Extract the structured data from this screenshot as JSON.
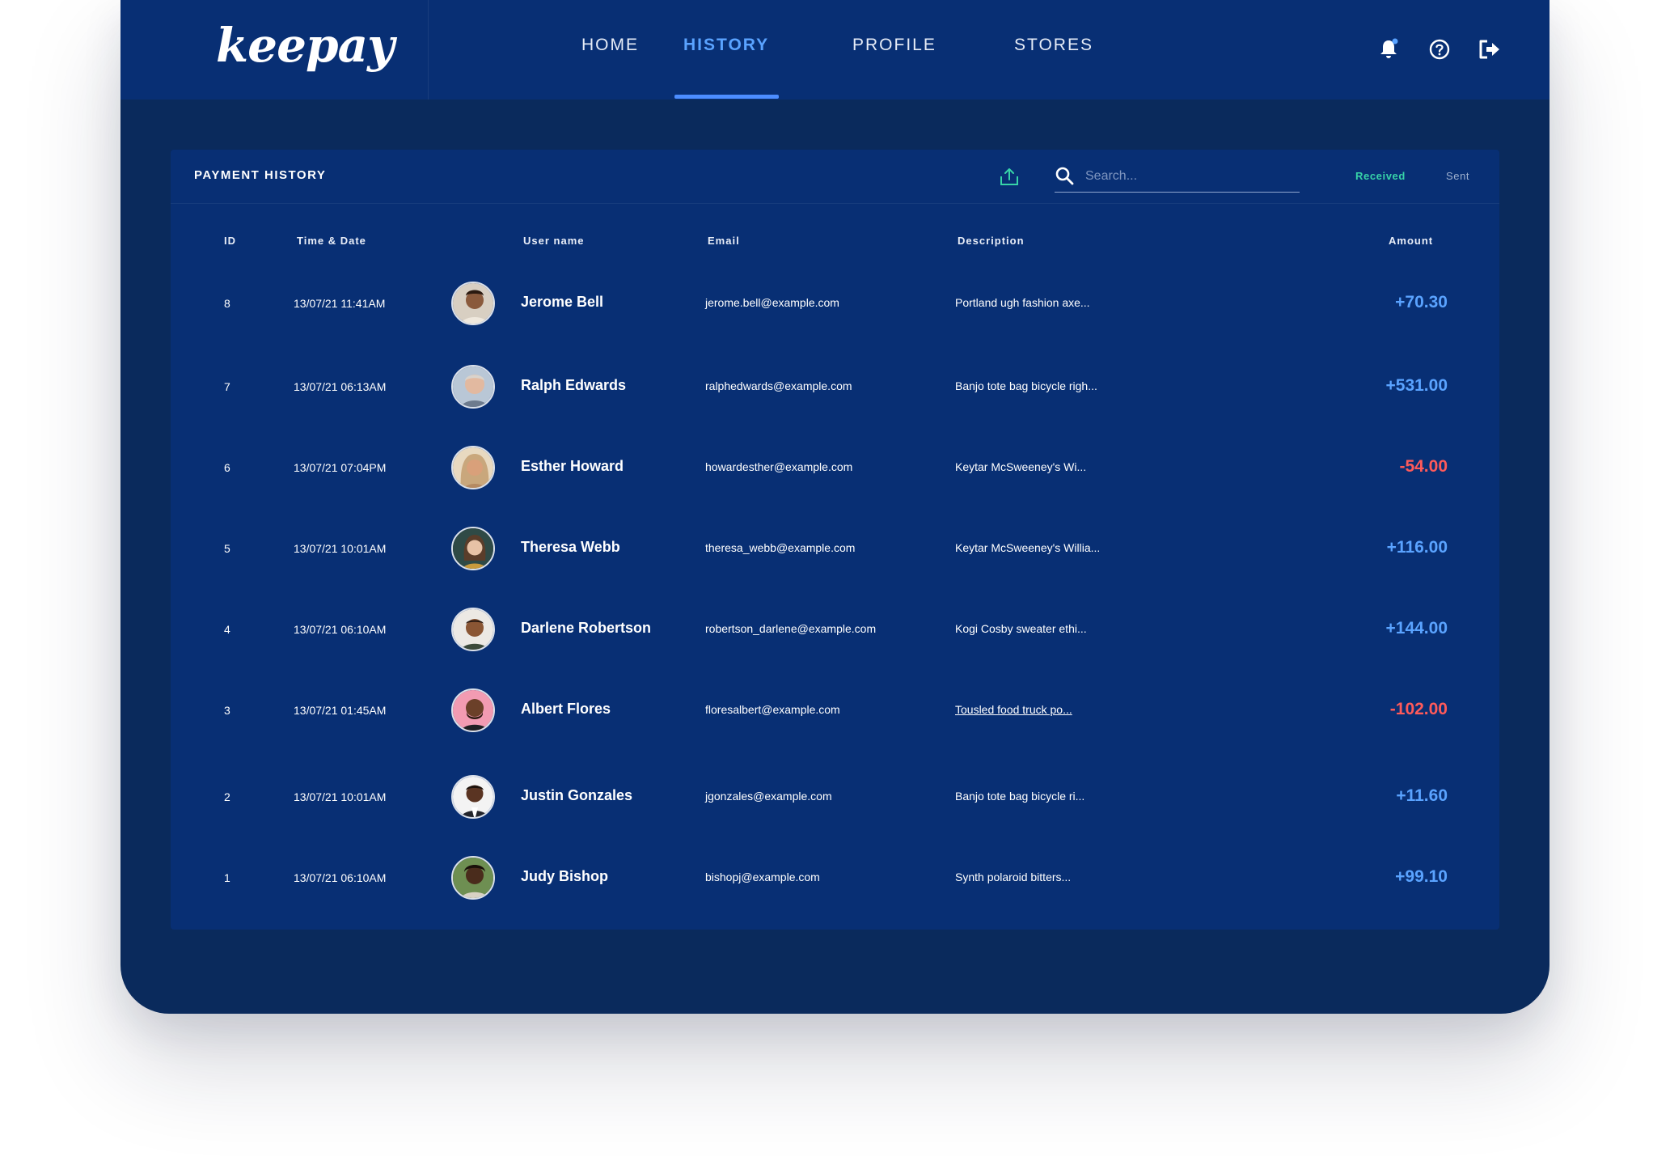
{
  "app": {
    "logo": "keepay"
  },
  "nav": {
    "items": [
      {
        "label": "HOME",
        "active": false
      },
      {
        "label": "HISTORY",
        "active": true
      },
      {
        "label": "PROFILE",
        "active": false
      },
      {
        "label": "STORES",
        "active": false
      }
    ],
    "icons": [
      "bell-icon",
      "help-icon",
      "logout-icon"
    ]
  },
  "panel": {
    "title": "PAYMENT HISTORY",
    "search_placeholder": "Search...",
    "toggle_received": "Received",
    "toggle_sent": "Sent",
    "columns": {
      "id": "ID",
      "datetime": "Time & Date",
      "username": "User name",
      "email": "Email",
      "description": "Description",
      "amount": "Amount"
    }
  },
  "rows": [
    {
      "id": "8",
      "datetime": "13/07/21 11:41AM",
      "name": "Jerome Bell",
      "email": "jerome.bell@example.com",
      "description": "Portland ugh fashion axe...",
      "amount": "+70.30"
    },
    {
      "id": "7",
      "datetime": "13/07/21 06:13AM",
      "name": "Ralph Edwards",
      "email": "ralphedwards@example.com",
      "description": "Banjo tote bag bicycle righ...",
      "amount": "+531.00"
    },
    {
      "id": "6",
      "datetime": "13/07/21 07:04PM",
      "name": "Esther Howard",
      "email": "howardesther@example.com",
      "description": "Keytar McSweeney's Wi...",
      "amount": "-54.00"
    },
    {
      "id": "5",
      "datetime": "13/07/21 10:01AM",
      "name": "Theresa Webb",
      "email": "theresa_webb@example.com",
      "description": "Keytar McSweeney's Willia...",
      "amount": "+116.00"
    },
    {
      "id": "4",
      "datetime": "13/07/21 06:10AM",
      "name": "Darlene Robertson",
      "email": "robertson_darlene@example.com",
      "description": "Kogi Cosby sweater ethi...",
      "amount": "+144.00"
    },
    {
      "id": "3",
      "datetime": "13/07/21 01:45AM",
      "name": "Albert Flores",
      "email": "floresalbert@example.com",
      "description": "Tousled food truck po...",
      "amount": "-102.00"
    },
    {
      "id": "2",
      "datetime": "13/07/21 10:01AM",
      "name": "Justin Gonzales",
      "email": "jgonzales@example.com",
      "description": "Banjo tote bag bicycle ri...",
      "amount": "+11.60"
    },
    {
      "id": "1",
      "datetime": "13/07/21 06:10AM",
      "name": "Judy Bishop",
      "email": "bishopj@example.com",
      "description": "Synth polaroid bitters...",
      "amount": "+99.10"
    }
  ],
  "colors": {
    "background": "#0a2a5c",
    "topbar": "#082f74",
    "accent": "#5aa3ff",
    "positive": "#5aa3ff",
    "negative": "#ff5a5a",
    "received": "#37d3a8"
  }
}
